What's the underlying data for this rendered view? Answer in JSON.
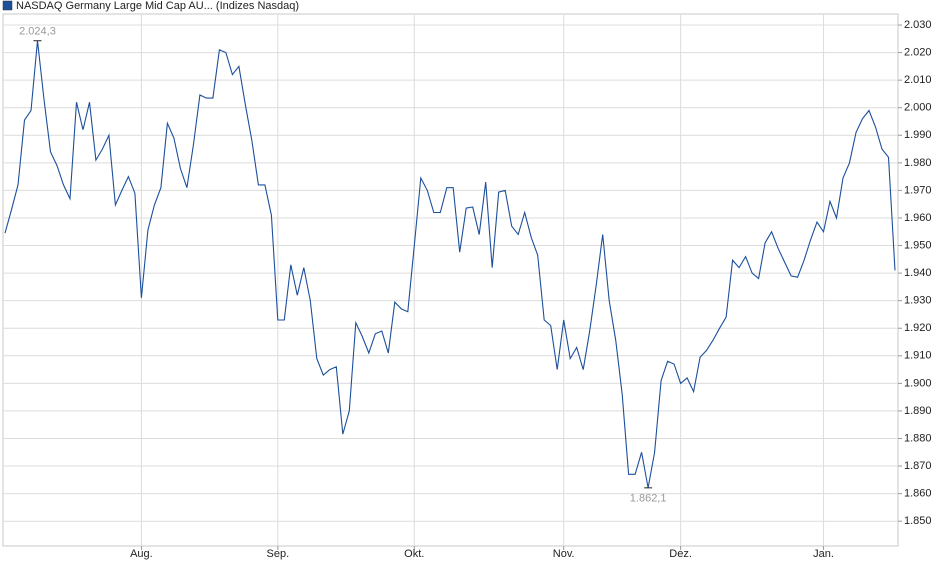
{
  "chart_data": {
    "type": "line",
    "series": [
      {
        "name": "NASDAQ Germany Large Mid Cap AU... (Indizes Nasdaq)",
        "color": "#1c4f9c",
        "values": [
          1954.5,
          1963,
          1972,
          1995.5,
          1999,
          2024.3,
          2003,
          1984,
          1979,
          1972,
          1967,
          2002,
          1992,
          2002,
          1981,
          1985,
          1990,
          1964.7,
          1970,
          1975,
          1969,
          1931,
          1955.6,
          1964.7,
          1971,
          1994.4,
          1989,
          1978,
          1971,
          1986.5,
          2004.6,
          2003.5,
          2003.5,
          2021,
          2020,
          2012,
          2015,
          2001,
          1988,
          1972,
          1972,
          1961,
          1923,
          1923,
          1943,
          1932,
          1942,
          1930,
          1909,
          1903,
          1905,
          1906,
          1881.6,
          1890,
          1922,
          1917,
          1911,
          1918,
          1919,
          1911,
          1929.5,
          1927,
          1926,
          1950,
          1974.5,
          1970,
          1962,
          1962,
          1971,
          1971,
          1947.6,
          1963.6,
          1964,
          1954,
          1973,
          1942,
          1969.4,
          1970,
          1957,
          1954,
          1962,
          1953,
          1946.5,
          1923,
          1921,
          1905,
          1923,
          1909,
          1913,
          1905,
          1919,
          1935.6,
          1954,
          1930,
          1915.7,
          1896,
          1867,
          1867,
          1875,
          1862.1,
          1875,
          1901,
          1908,
          1907,
          1900,
          1902,
          1897,
          1909.5,
          1912,
          1915.7,
          1920,
          1924,
          1944.7,
          1942,
          1946,
          1940,
          1938,
          1951,
          1955,
          1949,
          1944,
          1939,
          1938.5,
          1944.7,
          1952,
          1958.5,
          1955,
          1966,
          1960,
          1974.5,
          1980,
          1991,
          1996,
          1999,
          1993,
          1985,
          1982,
          1941
        ]
      }
    ],
    "categories": [
      null,
      null,
      null,
      null,
      null,
      null,
      null,
      null,
      null,
      null,
      null,
      null,
      null,
      null,
      null,
      null,
      null,
      null,
      null,
      null,
      null,
      "Aug.",
      null,
      null,
      null,
      null,
      null,
      null,
      null,
      null,
      null,
      null,
      null,
      null,
      null,
      null,
      null,
      null,
      null,
      null,
      null,
      null,
      "Sep.",
      null,
      null,
      null,
      null,
      null,
      null,
      null,
      null,
      null,
      null,
      null,
      null,
      null,
      null,
      null,
      null,
      null,
      null,
      null,
      null,
      "Okt.",
      null,
      null,
      null,
      null,
      null,
      null,
      null,
      null,
      null,
      null,
      null,
      null,
      null,
      null,
      null,
      null,
      null,
      null,
      null,
      null,
      null,
      null,
      "Nov.",
      null,
      null,
      null,
      null,
      null,
      null,
      null,
      null,
      null,
      null,
      null,
      null,
      null,
      null,
      null,
      null,
      null,
      "Dez.",
      null,
      null,
      null,
      null,
      null,
      null,
      null,
      null,
      null,
      null,
      null,
      null,
      null,
      null,
      null,
      null,
      null,
      null,
      null,
      null,
      null,
      "Jan.",
      null,
      null,
      null,
      null,
      null,
      null,
      null,
      null,
      null,
      null,
      null
    ],
    "ylim": [
      1841,
      2034
    ],
    "yticks": [
      {
        "value": 1850,
        "label": "1.850"
      },
      {
        "value": 1860,
        "label": "1.860"
      },
      {
        "value": 1870,
        "label": "1.870"
      },
      {
        "value": 1880,
        "label": "1.880"
      },
      {
        "value": 1890,
        "label": "1.890"
      },
      {
        "value": 1900,
        "label": "1.900"
      },
      {
        "value": 1910,
        "label": "1.910"
      },
      {
        "value": 1920,
        "label": "1.920"
      },
      {
        "value": 1930,
        "label": "1.930"
      },
      {
        "value": 1940,
        "label": "1.940"
      },
      {
        "value": 1950,
        "label": "1.950"
      },
      {
        "value": 1960,
        "label": "1.960"
      },
      {
        "value": 1970,
        "label": "1.970"
      },
      {
        "value": 1980,
        "label": "1.980"
      },
      {
        "value": 1990,
        "label": "1.990"
      },
      {
        "value": 2000,
        "label": "2.000"
      },
      {
        "value": 2010,
        "label": "2.010"
      },
      {
        "value": 2020,
        "label": "2.020"
      },
      {
        "value": 2030,
        "label": "2.030"
      }
    ],
    "annotations": [
      {
        "label": "2.024,3",
        "value": 2024.3
      },
      {
        "label": "1.862,1",
        "value": 1862.1
      }
    ],
    "grid": true,
    "legend": "top-left"
  }
}
